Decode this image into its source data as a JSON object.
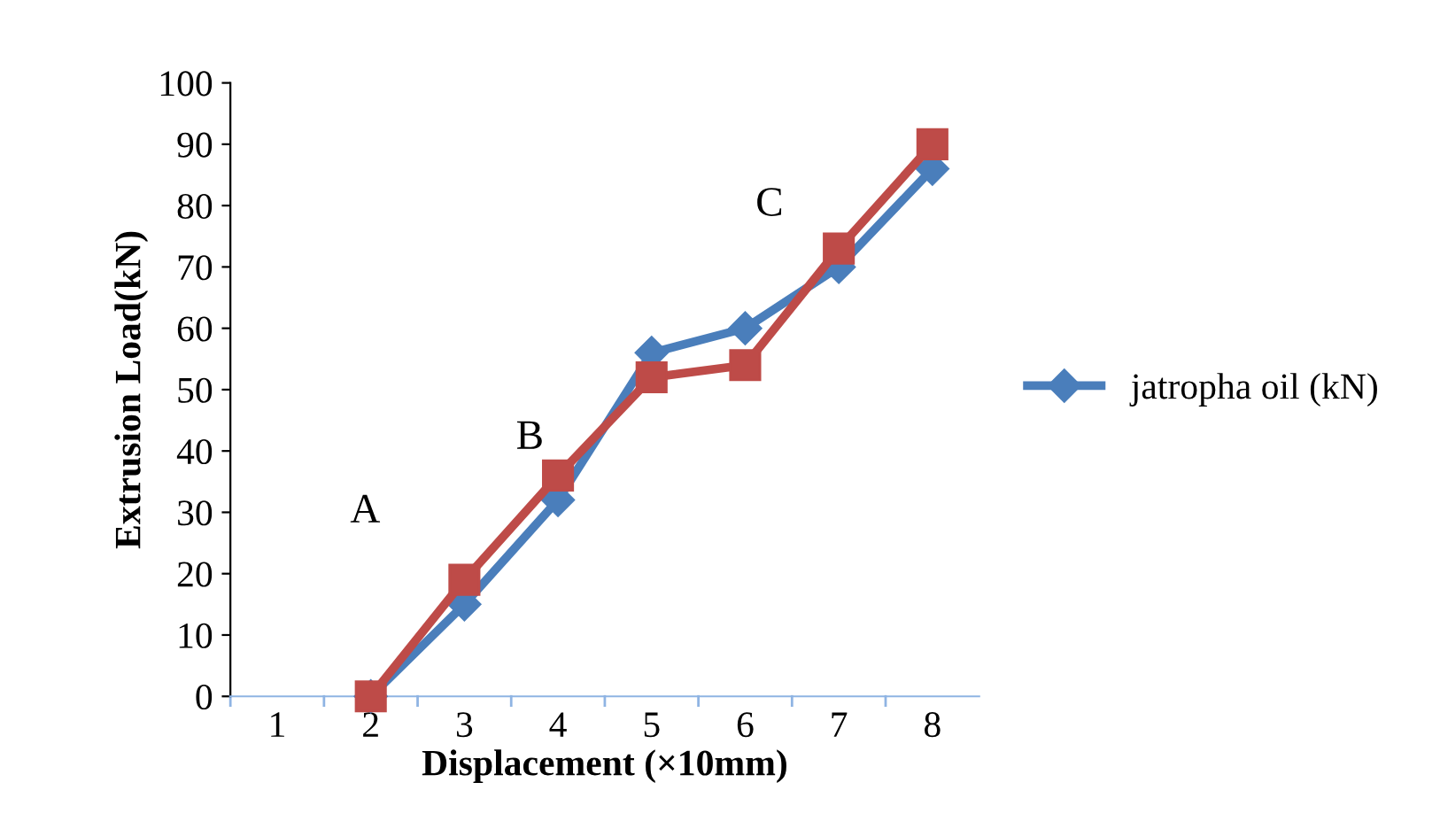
{
  "chart_data": {
    "type": "line",
    "xlabel": "Displacement (×10mm)",
    "ylabel": "Extrusion Load(kN)",
    "categories": [
      "1",
      "2",
      "3",
      "4",
      "5",
      "6",
      "7",
      "8"
    ],
    "series": [
      {
        "name": "jatropha oil (kN)",
        "color": "#4a7ebb",
        "marker": "diamond",
        "values": [
          null,
          0,
          15,
          32,
          56,
          60,
          70,
          86
        ]
      },
      {
        "color": "#be4b48",
        "marker": "square",
        "values": [
          null,
          0,
          19,
          36,
          52,
          54,
          73,
          90
        ]
      }
    ],
    "ylim": [
      0,
      100
    ],
    "yticks": [
      0,
      10,
      20,
      30,
      40,
      50,
      60,
      70,
      80,
      90,
      100
    ],
    "grid": false,
    "legend": "right",
    "annotations": [
      "A",
      "B",
      "C"
    ]
  }
}
